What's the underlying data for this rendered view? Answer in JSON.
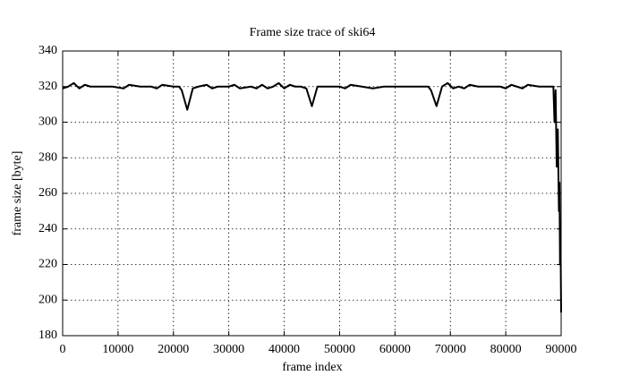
{
  "chart_data": {
    "type": "line",
    "title": "Frame size trace of ski64",
    "x_label": "frame index",
    "y_label": "frame size [byte]",
    "xlim": [
      0,
      90000
    ],
    "xticks": [
      0,
      10000,
      20000,
      30000,
      40000,
      50000,
      60000,
      70000,
      80000,
      90000
    ],
    "ylim": [
      180,
      340
    ],
    "yticks": [
      180,
      200,
      220,
      240,
      260,
      280,
      300,
      320,
      340
    ],
    "grid": true,
    "color": "#000000",
    "x": [
      0,
      1000,
      2000,
      3000,
      4000,
      5000,
      7000,
      9000,
      11000,
      12000,
      14000,
      16000,
      17000,
      18000,
      20000,
      21000,
      21500,
      22500,
      23500,
      24500,
      26000,
      27000,
      28000,
      30000,
      31000,
      32000,
      34000,
      35000,
      36000,
      37000,
      38000,
      39000,
      40000,
      41000,
      42000,
      43000,
      44000,
      45000,
      46000,
      48000,
      50000,
      51000,
      52000,
      54000,
      56000,
      58000,
      60000,
      62000,
      64000,
      66000,
      66500,
      67500,
      68500,
      69500,
      70500,
      71500,
      72500,
      73500,
      75000,
      77000,
      79000,
      80000,
      81000,
      82000,
      83000,
      84000,
      86000,
      88000,
      88600,
      88800,
      89000,
      89200,
      89400,
      89600,
      89700,
      89800,
      89900,
      90000
    ],
    "values": [
      319,
      320,
      322,
      319,
      321,
      320,
      320,
      320,
      319,
      321,
      320,
      320,
      319,
      321,
      320,
      320,
      318,
      307,
      319,
      320,
      321,
      319,
      320,
      320,
      321,
      319,
      320,
      319,
      321,
      319,
      320,
      322,
      319,
      321,
      320,
      320,
      319,
      309,
      320,
      320,
      320,
      319,
      321,
      320,
      319,
      320,
      320,
      320,
      320,
      320,
      318,
      309,
      320,
      322,
      319,
      320,
      319,
      321,
      320,
      320,
      320,
      319,
      321,
      320,
      319,
      321,
      320,
      320,
      320,
      300,
      318,
      275,
      296,
      250,
      266,
      220,
      230,
      193
    ]
  }
}
